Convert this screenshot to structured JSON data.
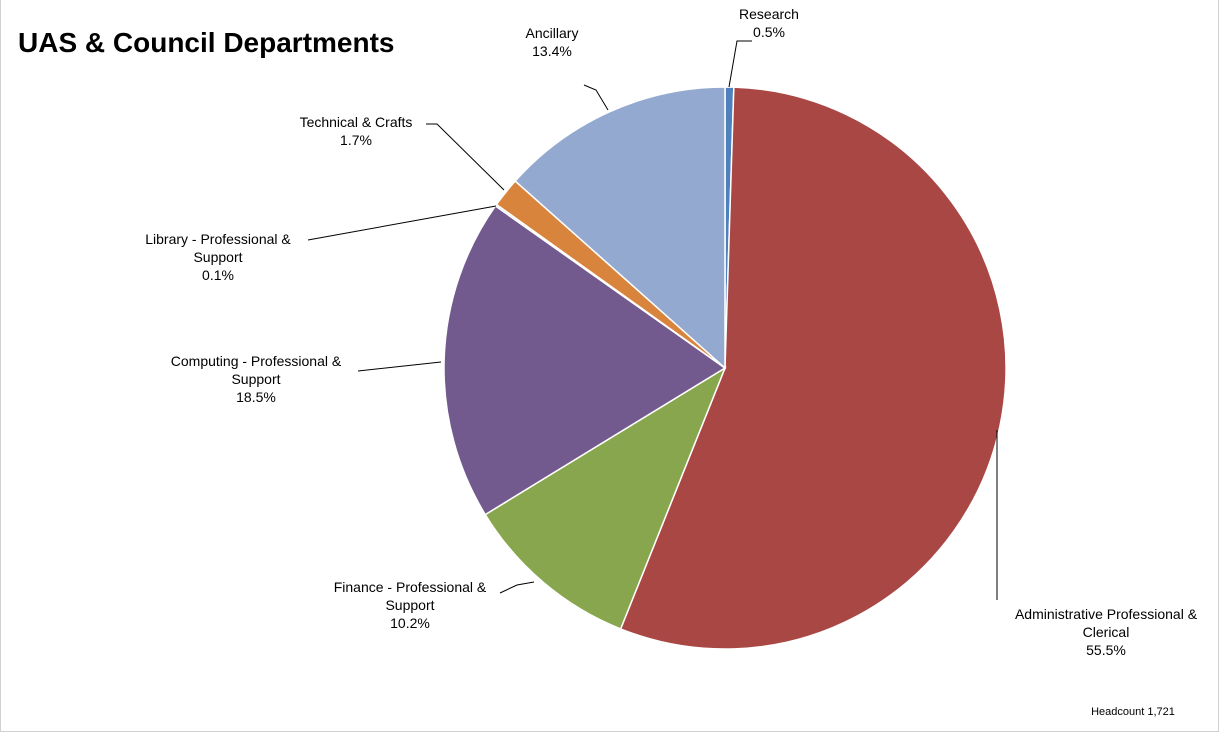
{
  "chart_data": {
    "type": "pie",
    "title": "UAS & Council Departments",
    "note": "Headcount 1,721",
    "slices": [
      {
        "name": "Research",
        "label_lines": [
          "Research"
        ],
        "value": 0.5,
        "value_label": "0.5%",
        "color": "#4f81bd"
      },
      {
        "name": "Administrative Professional & Clerical",
        "label_lines": [
          "Administrative Professional &",
          "Clerical"
        ],
        "value": 55.5,
        "value_label": "55.5%",
        "color": "#a94744"
      },
      {
        "name": "Finance - Professional & Support",
        "label_lines": [
          "Finance - Professional &",
          "Support"
        ],
        "value": 10.2,
        "value_label": "10.2%",
        "color": "#88a64d"
      },
      {
        "name": "Computing - Professional & Support",
        "label_lines": [
          "Computing - Professional &",
          "Support"
        ],
        "value": 18.5,
        "value_label": "18.5%",
        "color": "#725a8f"
      },
      {
        "name": "Library - Professional & Support",
        "label_lines": [
          "Library - Professional &",
          "Support"
        ],
        "value": 0.1,
        "value_label": "0.1%",
        "color": "#4aabc4"
      },
      {
        "name": "Technical & Crafts",
        "label_lines": [
          "Technical & Crafts"
        ],
        "value": 1.7,
        "value_label": "1.7%",
        "color": "#d9843d"
      },
      {
        "name": "Ancillary",
        "label_lines": [
          "Ancillary"
        ],
        "value": 13.4,
        "value_label": "13.4%",
        "color": "#93a9cf"
      }
    ]
  }
}
